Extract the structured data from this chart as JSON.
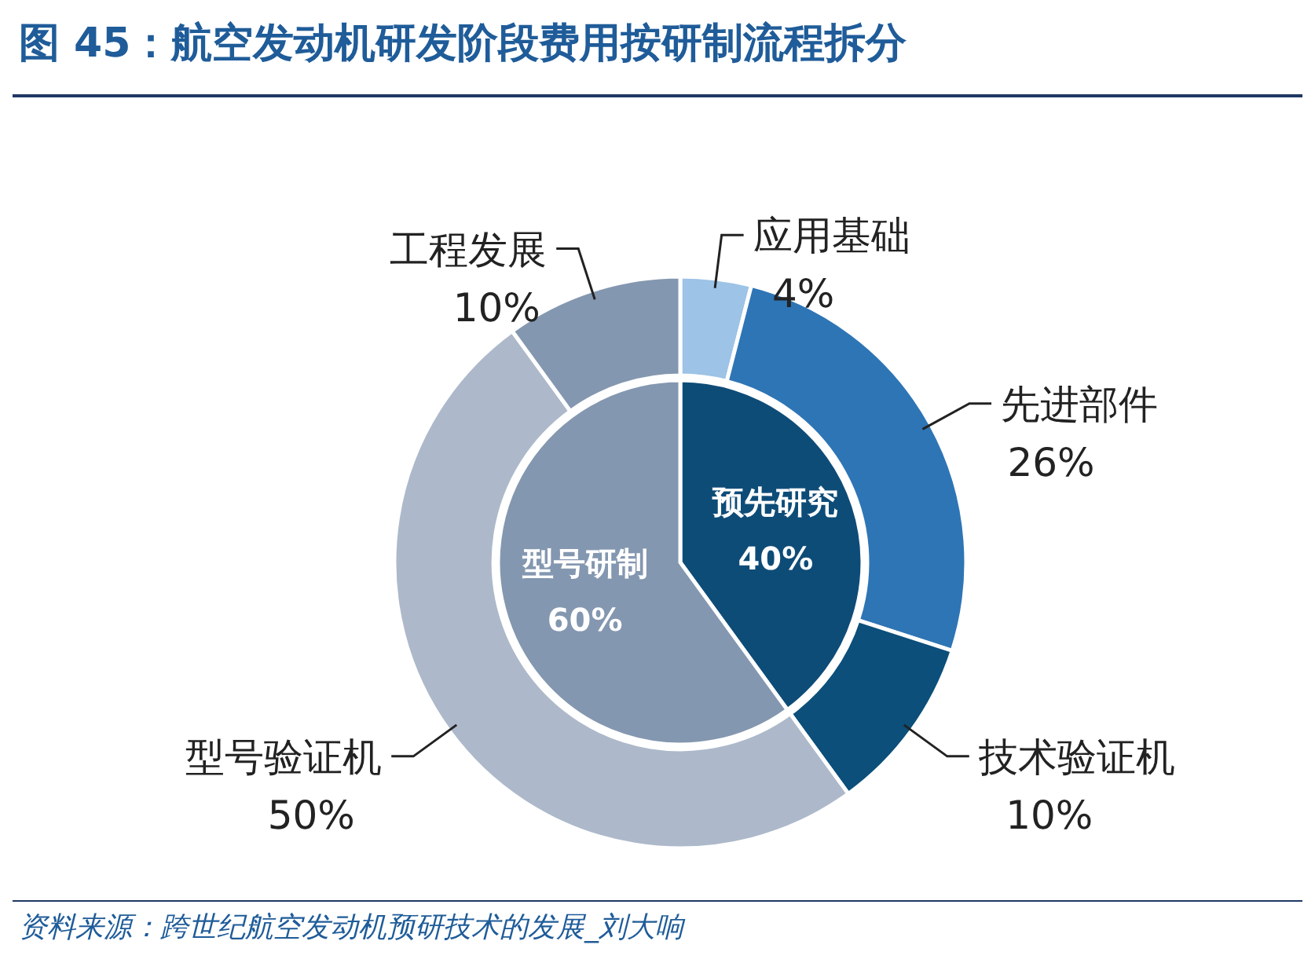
{
  "chart_data": [
    {
      "type": "pie",
      "title": "图 45：航空发动机研发阶段费用按研制流程拆分",
      "categories": [
        "预先研究",
        "型号研制"
      ],
      "values": [
        40,
        60
      ],
      "colors": [
        "#0e4c78",
        "#8497b0"
      ],
      "value_labels": [
        "40%",
        "60%"
      ],
      "annotations": [
        "资料来源：跨世纪航空发动机预研技术的发展_刘大响"
      ]
    },
    {
      "type": "donut",
      "categories": [
        "应用基础",
        "先进部件",
        "技术验证机",
        "型号验证机",
        "工程发展"
      ],
      "values": [
        4,
        26,
        10,
        50,
        10
      ],
      "colors": [
        "#9dc3e6",
        "#2e75b6",
        "#0b4f7a",
        "#adb9ca",
        "#8497b0"
      ],
      "value_labels": [
        "4%",
        "26%",
        "10%",
        "50%",
        "10%"
      ]
    }
  ]
}
